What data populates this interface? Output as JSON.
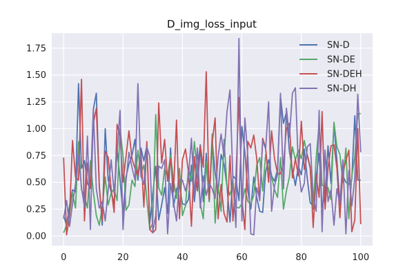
{
  "chart_data": {
    "type": "line",
    "title": "D_img_loss_input",
    "xlabel": "",
    "ylabel": "",
    "xlim": [
      -4,
      104
    ],
    "ylim": [
      -0.09,
      1.89
    ],
    "xticks": [
      0,
      20,
      40,
      60,
      80,
      100
    ],
    "yticks": [
      0.0,
      0.25,
      0.5,
      0.75,
      1.0,
      1.25,
      1.5,
      1.75
    ],
    "grid": true,
    "legend_position": "top-right",
    "background": "#eaeaf2",
    "series": [
      {
        "name": "SN-D",
        "color": "#4c72b0",
        "values": [
          0.19,
          0.1,
          0.28,
          0.43,
          0.41,
          1.42,
          0.63,
          0.7,
          0.49,
          0.44,
          1.18,
          1.33,
          0.47,
          0.1,
          1.0,
          0.52,
          0.41,
          0.3,
          0.82,
          0.52,
          0.21,
          0.55,
          0.67,
          0.75,
          0.9,
          0.52,
          0.82,
          0.7,
          0.84,
          0.12,
          0.39,
          0.65,
          0.15,
          0.29,
          0.45,
          0.21,
          0.82,
          0.27,
          0.44,
          0.48,
          0.3,
          0.29,
          0.34,
          0.66,
          0.32,
          0.61,
          0.85,
          0.32,
          0.77,
          0.32,
          0.89,
          0.59,
          0.4,
          0.76,
          0.67,
          0.46,
          0.13,
          0.56,
          0.53,
          0.33,
          1.02,
          0.78,
          0.42,
          0.25,
          0.55,
          0.36,
          0.23,
          0.22,
          0.6,
          0.71,
          0.56,
          0.51,
          0.62,
          1.3,
          1.05,
          1.15,
          0.79,
          0.62,
          0.47,
          0.65,
          0.57,
          0.81,
          0.54,
          0.31,
          0.28,
          0.55,
          0.77,
          0.27,
          0.37,
          0.84,
          0.49,
          1.04,
          0.7,
          0.29,
          0.56,
          0.5,
          0.48,
          0.53,
          1.12,
          0.52,
          0.52
        ]
      },
      {
        "name": "SN-DE",
        "color": "#55a868",
        "values": [
          0.03,
          0.1,
          0.2,
          0.4,
          0.26,
          0.88,
          0.43,
          0.37,
          0.26,
          0.7,
          0.41,
          0.19,
          0.1,
          0.27,
          0.55,
          0.29,
          0.4,
          0.44,
          0.33,
          1.0,
          0.75,
          0.24,
          0.29,
          0.52,
          0.46,
          0.8,
          0.58,
          0.66,
          0.34,
          0.06,
          0.12,
          1.13,
          0.45,
          0.38,
          0.63,
          0.55,
          0.75,
          0.52,
          0.35,
          0.63,
          0.19,
          0.28,
          0.63,
          0.51,
          0.88,
          0.6,
          0.3,
          0.16,
          0.69,
          0.32,
          0.95,
          0.12,
          0.47,
          0.23,
          0.9,
          0.46,
          0.38,
          0.49,
          0.27,
          0.26,
          0.3,
          0.44,
          0.32,
          0.3,
          0.38,
          0.66,
          0.73,
          0.42,
          0.76,
          0.62,
          0.55,
          0.43,
          0.36,
          0.73,
          0.25,
          0.42,
          0.55,
          0.83,
          0.71,
          0.8,
          0.72,
          0.89,
          0.75,
          0.63,
          0.25,
          0.73,
          1.04,
          0.47,
          0.47,
          0.45,
          0.34,
          1.06,
          0.83,
          0.76,
          0.5,
          0.82,
          0.16,
          0.56,
          0.74,
          1.14,
          1.14
        ]
      },
      {
        "name": "SN-DEH",
        "color": "#c44e52",
        "values": [
          0.73,
          0.01,
          0.19,
          0.89,
          0.55,
          0.52,
          1.46,
          0.14,
          0.68,
          0.45,
          1.05,
          1.19,
          0.46,
          0.14,
          0.79,
          0.73,
          0.44,
          0.22,
          1.04,
          0.93,
          0.5,
          0.74,
          0.98,
          0.72,
          0.63,
          0.56,
          0.79,
          0.27,
          0.88,
          0.06,
          0.03,
          0.06,
          1.24,
          0.68,
          0.9,
          0.51,
          0.72,
          0.41,
          1.08,
          0.16,
          0.71,
          0.81,
          0.6,
          0.09,
          0.74,
          0.42,
          0.84,
          0.64,
          1.53,
          0.34,
          0.87,
          1.1,
          0.16,
          0.48,
          0.21,
          0.13,
          0.75,
          0.14,
          0.54,
          1.29,
          0.35,
          0.06,
          0.88,
          0.82,
          0.94,
          0.72,
          0.33,
          0.91,
          0.82,
          0.5,
          0.98,
          0.72,
          0.58,
          0.58,
          0.67,
          1.0,
          1.05,
          0.54,
          0.72,
          0.56,
          1.07,
          0.62,
          0.76,
          0.64,
          0.08,
          0.57,
          0.36,
          1.16,
          0.25,
          0.63,
          0.84,
          0.85,
          0.63,
          0.17,
          0.6,
          0.7,
          0.8,
          0.04,
          0.15,
          1.0,
          0.11
        ]
      },
      {
        "name": "SN-DH",
        "color": "#8172b2",
        "values": [
          0.16,
          0.33,
          0.09,
          0.3,
          0.48,
          0.75,
          0.45,
          0.27,
          0.93,
          0.06,
          1.17,
          0.44,
          0.26,
          0.32,
          0.14,
          0.43,
          0.71,
          0.4,
          0.78,
          1.17,
          0.06,
          0.51,
          0.78,
          0.64,
          0.52,
          1.42,
          0.56,
          0.48,
          0.83,
          0.74,
          0.04,
          0.19,
          0.65,
          0.63,
          0.71,
          0.02,
          0.49,
          0.31,
          0.14,
          0.53,
          0.52,
          0.42,
          0.54,
          0.91,
          0.37,
          0.82,
          0.26,
          0.56,
          0.38,
          0.49,
          0.44,
          0.35,
          0.74,
          0.95,
          0.74,
          1.16,
          1.36,
          0.51,
          0.08,
          1.84,
          0.14,
          1.1,
          0.74,
          0.02,
          0.01,
          0.45,
          0.34,
          0.89,
          0.81,
          1.25,
          0.23,
          0.47,
          0.57,
          1.33,
          0.44,
          1.19,
          0.92,
          1.33,
          1.38,
          0.65,
          0.41,
          0.49,
          0.83,
          0.86,
          0.37,
          0.23,
          1.17,
          0.04,
          0.8,
          0.32,
          0.43,
          0.1,
          0.44,
          0.3,
          0.71,
          0.02,
          0.61,
          0.28,
          0.54,
          1.32,
          0.78
        ]
      }
    ]
  }
}
